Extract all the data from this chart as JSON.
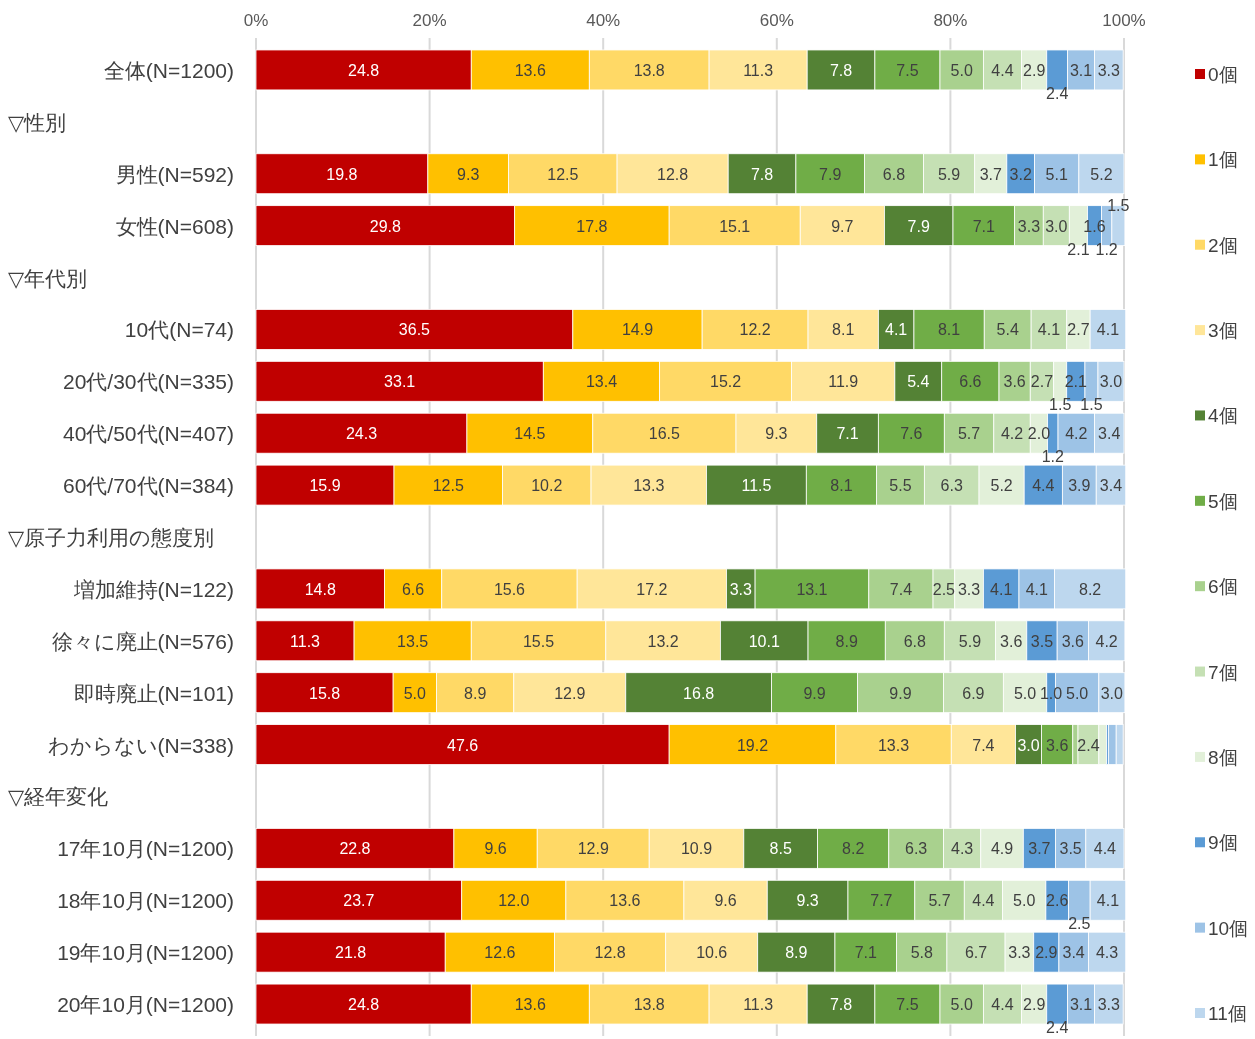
{
  "chart_data": {
    "type": "bar",
    "orientation": "horizontal",
    "stacked": true,
    "categories": [
      "全体(N=1200)",
      null,
      "男性(N=592)",
      "女性(N=608)",
      null,
      "10代(N=74)",
      "20代/30代(N=335)",
      "40代/50代(N=407)",
      "60代/70代(N=384)",
      null,
      "増加維持(N=122)",
      "徐々に廃止(N=576)",
      "即時廃止(N=101)",
      "わからない(N=338)",
      null,
      "17年10月(N=1200)",
      "18年10月(N=1200)",
      "19年10月(N=1200)",
      "20年10月(N=1200)"
    ],
    "annotations": [
      "▽性別",
      "▽年代別",
      "▽原子力利用の態度別",
      "▽経年変化"
    ],
    "xlim": [
      0,
      100
    ],
    "xticks": [
      {
        "value": 0,
        "label": "0%"
      },
      {
        "value": 20,
        "label": "20%"
      },
      {
        "value": 40,
        "label": "40%"
      },
      {
        "value": 60,
        "label": "60%"
      },
      {
        "value": 80,
        "label": "80%"
      },
      {
        "value": 100,
        "label": "100%"
      }
    ],
    "grid": "x",
    "legend": "right",
    "series": [
      {
        "name": "0個",
        "color": "#c00000",
        "values": [
          24.8,
          null,
          19.8,
          29.8,
          null,
          36.5,
          33.1,
          24.3,
          15.9,
          null,
          14.8,
          11.3,
          15.8,
          47.6,
          null,
          22.8,
          23.7,
          21.8,
          24.8
        ],
        "value_labels": [
          "24.8",
          null,
          "19.8",
          "29.8",
          null,
          "36.5",
          "33.1",
          "24.3",
          "15.9",
          null,
          "14.8",
          "11.3",
          "15.8",
          "47.6",
          null,
          "22.8",
          "23.7",
          "21.8",
          "24.8"
        ]
      },
      {
        "name": "1個",
        "color": "#ffc000",
        "values": [
          13.6,
          null,
          9.3,
          17.8,
          null,
          14.9,
          13.4,
          14.5,
          12.5,
          null,
          6.6,
          13.5,
          5.0,
          19.2,
          null,
          9.6,
          12.0,
          12.6,
          13.6
        ],
        "value_labels": [
          "13.6",
          null,
          "9.3",
          "17.8",
          null,
          "14.9",
          "13.4",
          "14.5",
          "12.5",
          null,
          "6.6",
          "13.5",
          "5.0",
          "19.2",
          null,
          "9.6",
          "12.0",
          "12.6",
          "13.6"
        ]
      },
      {
        "name": "2個",
        "color": "#ffd966",
        "values": [
          13.8,
          null,
          12.5,
          15.1,
          null,
          12.2,
          15.2,
          16.5,
          10.2,
          null,
          15.6,
          15.5,
          8.9,
          13.3,
          null,
          12.9,
          13.6,
          12.8,
          13.8
        ],
        "value_labels": [
          "13.8",
          null,
          "12.5",
          "15.1",
          null,
          "12.2",
          "15.2",
          "16.5",
          "10.2",
          null,
          "15.6",
          "15.5",
          "8.9",
          "13.3",
          null,
          "12.9",
          "13.6",
          "12.8",
          "13.8"
        ]
      },
      {
        "name": "3個",
        "color": "#ffe699",
        "values": [
          11.3,
          null,
          12.8,
          9.7,
          null,
          8.1,
          11.9,
          9.3,
          13.3,
          null,
          17.2,
          13.2,
          12.9,
          7.4,
          null,
          10.9,
          9.6,
          10.6,
          11.3
        ],
        "value_labels": [
          "11.3",
          null,
          "12.8",
          "9.7",
          null,
          "8.1",
          "11.9",
          "9.3",
          "13.3",
          null,
          "17.2",
          "13.2",
          "12.9",
          "7.4",
          null,
          "10.9",
          "9.6",
          "10.6",
          "11.3"
        ]
      },
      {
        "name": "4個",
        "color": "#548235",
        "values": [
          7.8,
          null,
          7.8,
          7.9,
          null,
          4.1,
          5.4,
          7.1,
          11.5,
          null,
          3.3,
          10.1,
          16.8,
          3.0,
          null,
          8.5,
          9.3,
          8.9,
          7.8
        ],
        "value_labels": [
          "7.8",
          null,
          "7.8",
          "7.9",
          null,
          "4.1",
          "5.4",
          "7.1",
          "11.5",
          null,
          "3.3",
          "10.1",
          "16.8",
          "3.0",
          null,
          "8.5",
          "9.3",
          "8.9",
          "7.8"
        ]
      },
      {
        "name": "5個",
        "color": "#70ad47",
        "values": [
          7.5,
          null,
          7.9,
          7.1,
          null,
          8.1,
          6.6,
          7.6,
          8.1,
          null,
          13.1,
          8.9,
          9.9,
          3.6,
          null,
          8.2,
          7.7,
          7.1,
          7.5
        ],
        "value_labels": [
          "7.5",
          null,
          "7.9",
          "7.1",
          null,
          "8.1",
          "6.6",
          "7.6",
          "8.1",
          null,
          "13.1",
          "8.9",
          "9.9",
          "3.6",
          null,
          "8.2",
          "7.7",
          "7.1",
          "7.5"
        ]
      },
      {
        "name": "6個",
        "color": "#a9d18e",
        "values": [
          5.0,
          null,
          6.8,
          3.3,
          null,
          5.4,
          3.6,
          5.7,
          5.5,
          null,
          7.4,
          6.8,
          9.9,
          0.6,
          null,
          6.3,
          5.7,
          5.8,
          5.0
        ],
        "value_labels": [
          "5.0",
          null,
          "6.8",
          "3.3",
          null,
          "5.4",
          "3.6",
          "5.7",
          "5.5",
          null,
          "7.4",
          "6.8",
          "9.9",
          null,
          null,
          "6.3",
          "5.7",
          "5.8",
          "5.0"
        ]
      },
      {
        "name": "7個",
        "color": "#c5e0b4",
        "values": [
          4.4,
          null,
          5.9,
          3.0,
          null,
          4.1,
          2.7,
          4.2,
          6.3,
          null,
          2.5,
          5.9,
          6.9,
          2.4,
          null,
          4.3,
          4.4,
          6.7,
          4.4
        ],
        "value_labels": [
          "4.4",
          null,
          "5.9",
          "3.0",
          null,
          "4.1",
          "2.7",
          "4.2",
          "6.3",
          null,
          "2.5",
          "5.9",
          "6.9",
          "2.4",
          null,
          "4.3",
          "4.4",
          "6.7",
          "4.4"
        ]
      },
      {
        "name": "8個",
        "color": "#e2f0d9",
        "values": [
          2.9,
          null,
          3.7,
          2.1,
          null,
          2.7,
          1.5,
          2.0,
          5.2,
          null,
          3.3,
          3.6,
          5.0,
          0.9,
          null,
          4.9,
          5.0,
          3.3,
          2.9
        ],
        "value_labels": [
          "2.9",
          null,
          "3.7",
          "2.1",
          null,
          "2.7",
          "1.5",
          "2.0",
          "5.2",
          null,
          "3.3",
          "3.6",
          "5.0",
          null,
          null,
          "4.9",
          "5.0",
          "3.3",
          "2.9"
        ]
      },
      {
        "name": "9個",
        "color": "#5b9bd5",
        "values": [
          2.4,
          null,
          3.2,
          1.6,
          null,
          0,
          2.1,
          1.2,
          4.4,
          null,
          4.1,
          3.5,
          1.0,
          0.2,
          null,
          3.7,
          2.6,
          2.9,
          2.4
        ],
        "value_labels": [
          "2.4",
          null,
          "3.2",
          "1.6",
          null,
          null,
          "2.1",
          "1.2",
          "4.4",
          null,
          "4.1",
          "3.5",
          "1.0",
          null,
          null,
          "3.7",
          "2.6",
          "2.9",
          "2.4"
        ]
      },
      {
        "name": "10個",
        "color": "#9dc3e6",
        "values": [
          3.1,
          null,
          5.1,
          1.2,
          null,
          0,
          1.5,
          4.2,
          3.9,
          null,
          4.1,
          3.6,
          5.0,
          0.9,
          null,
          3.5,
          2.5,
          3.4,
          3.1
        ],
        "value_labels": [
          "3.1",
          null,
          "5.1",
          "1.2",
          null,
          null,
          "1.5",
          "4.2",
          "3.9",
          null,
          "4.1",
          "3.6",
          "5.0",
          null,
          null,
          "3.5",
          "2.5",
          "3.4",
          "3.1"
        ]
      },
      {
        "name": "11個",
        "color": "#bdd7ee",
        "values": [
          3.3,
          null,
          5.2,
          1.5,
          null,
          4.1,
          3.0,
          3.4,
          3.4,
          null,
          8.2,
          4.2,
          3.0,
          0.8,
          null,
          4.4,
          4.1,
          4.3,
          3.3
        ],
        "value_labels": [
          "3.3",
          null,
          "5.2",
          "1.5",
          null,
          "4.1",
          "3.0",
          "3.4",
          "3.4",
          null,
          "8.2",
          "4.2",
          "3.0",
          null,
          null,
          "4.4",
          "4.1",
          "4.3",
          "3.3"
        ]
      }
    ]
  }
}
